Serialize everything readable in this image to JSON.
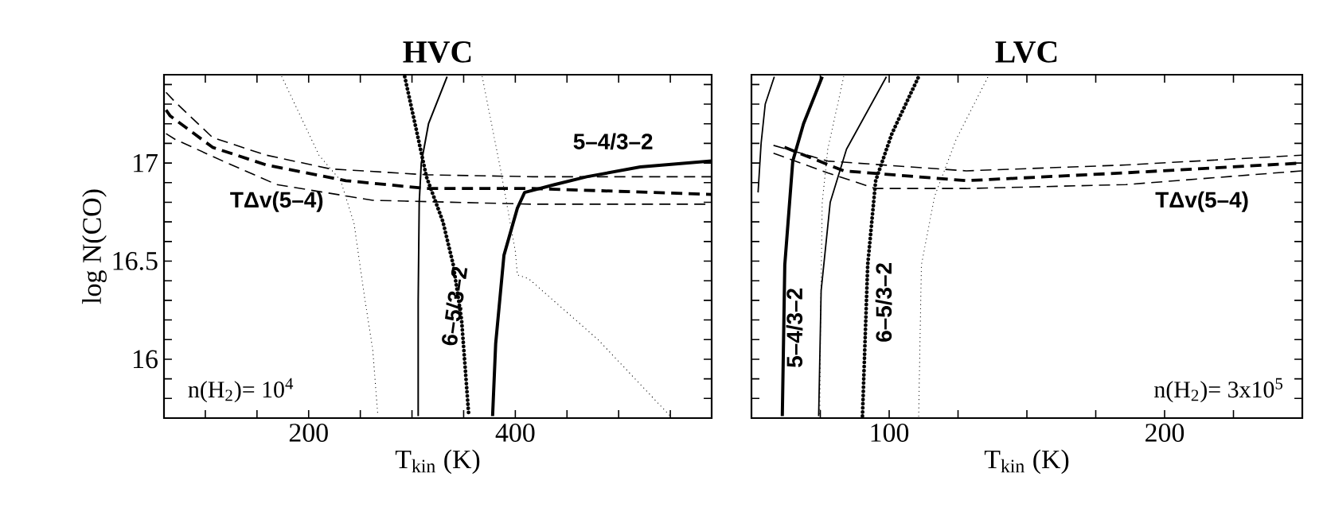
{
  "chart_data": [
    {
      "type": "line",
      "title": "HVC",
      "xlabel": "T$_{kin}$  (K)",
      "ylabel": "log N(CO)",
      "xlim": [
        60,
        590
      ],
      "ylim": [
        15.7,
        17.45
      ],
      "xticks": [
        {
          "value": 100,
          "label": null
        },
        {
          "value": 150,
          "label": null
        },
        200,
        {
          "value": 250,
          "label": null
        },
        {
          "value": 300,
          "label": null
        },
        {
          "value": 350,
          "label": null
        },
        400,
        {
          "value": 450,
          "label": null
        },
        {
          "value": 500,
          "label": null
        },
        {
          "value": 550,
          "label": null
        }
      ],
      "yticks": [
        {
          "value": 15.8,
          "label": null
        },
        {
          "value": 15.9,
          "label": null
        },
        16,
        {
          "value": 16.1,
          "label": null
        },
        {
          "value": 16.2,
          "label": null
        },
        {
          "value": 16.3,
          "label": null
        },
        {
          "value": 16.4,
          "label": null
        },
        16.5,
        {
          "value": 16.6,
          "label": null
        },
        {
          "value": 16.7,
          "label": null
        },
        {
          "value": 16.8,
          "label": null
        },
        {
          "value": 16.9,
          "label": null
        },
        17,
        {
          "value": 17.1,
          "label": null
        },
        {
          "value": 17.2,
          "label": null
        },
        {
          "value": 17.3,
          "label": null
        },
        {
          "value": 17.4,
          "label": null
        }
      ],
      "series": [
        {
          "color": "#000000",
          "line_style": "dotted",
          "x": [
            174,
            210,
            231,
            244,
            254,
            262,
            267
          ],
          "values": [
            17.44,
            17.04,
            16.91,
            16.69,
            16.32,
            16.05,
            15.71
          ]
        },
        {
          "color": "#000000",
          "line_style": "solid",
          "x": [
            306,
            306,
            307,
            309,
            316,
            334
          ],
          "values": [
            15.71,
            16.3,
            16.8,
            17.0,
            17.2,
            17.44
          ]
        },
        {
          "color": "#000000",
          "line_style": "dotted",
          "x": [
            293,
            305,
            314,
            330,
            340,
            348,
            355
          ],
          "values": [
            17.44,
            17.15,
            16.93,
            16.7,
            16.48,
            16.2,
            15.71
          ]
        },
        {
          "color": "#000000",
          "line_style": "dotted",
          "x": [
            368,
            386,
            400,
            402,
            413,
            480,
            550
          ],
          "values": [
            17.44,
            16.96,
            16.55,
            16.43,
            16.41,
            16.1,
            15.71
          ]
        },
        {
          "color": "#000000",
          "line_style": "solid",
          "x": [
            378,
            381,
            389,
            402,
            409,
            438,
            469,
            521,
            590
          ],
          "values": [
            15.71,
            16.08,
            16.53,
            16.77,
            16.85,
            16.89,
            16.93,
            16.98,
            17.01
          ]
        },
        {
          "color": "#000000",
          "line_style": "dashed",
          "x": [
            62,
            71,
            107,
            159,
            221,
            314,
            417,
            590
          ],
          "values": [
            17.36,
            17.31,
            17.13,
            17.04,
            16.97,
            16.94,
            16.93,
            16.93
          ]
        },
        {
          "color": "#000000",
          "line_style": "dashed",
          "x": [
            62,
            66,
            107,
            159,
            236,
            314,
            417,
            590
          ],
          "values": [
            17.27,
            17.24,
            17.08,
            16.99,
            16.91,
            16.87,
            16.87,
            16.84
          ]
        },
        {
          "color": "#000000",
          "line_style": "dashed",
          "x": [
            62,
            71,
            117,
            169,
            262,
            417,
            590
          ],
          "values": [
            17.15,
            17.12,
            17.01,
            16.89,
            16.81,
            16.79,
            16.79
          ]
        }
      ],
      "annotations": [
        "TΔv(5–4)",
        "5–4/3–2",
        "6–5/3–2",
        "n(H$_{2}$)= 10$^{4}$"
      ]
    },
    {
      "type": "line",
      "title": "LVC",
      "xlabel": "T$_{kin}$  (K)",
      "tick_labels": "x",
      "xlim": [
        50,
        250
      ],
      "ylim": [
        15.7,
        17.45
      ],
      "xticks": [
        {
          "value": 75,
          "label": null
        },
        100,
        {
          "value": 125,
          "label": null
        },
        {
          "value": 150,
          "label": null
        },
        {
          "value": 175,
          "label": null
        },
        200,
        {
          "value": 225,
          "label": null
        }
      ],
      "yticks": [
        {
          "value": 15.8,
          "label": null
        },
        {
          "value": 15.9,
          "label": null
        },
        {
          "value": 16,
          "label": null
        },
        {
          "value": 16.1,
          "label": null
        },
        {
          "value": 16.2,
          "label": null
        },
        {
          "value": 16.3,
          "label": null
        },
        {
          "value": 16.4,
          "label": null
        },
        {
          "value": 16.5,
          "label": null
        },
        {
          "value": 16.6,
          "label": null
        },
        {
          "value": 16.7,
          "label": null
        },
        {
          "value": 16.8,
          "label": null
        },
        {
          "value": 16.9,
          "label": null
        },
        {
          "value": 17,
          "label": null
        },
        {
          "value": 17.1,
          "label": null
        },
        {
          "value": 17.2,
          "label": null
        },
        {
          "value": 17.3,
          "label": null
        },
        {
          "value": 17.4,
          "label": null
        }
      ],
      "series": [
        {
          "color": "#000000",
          "line_style": "solid",
          "x": [
            52.4,
            53.5,
            55,
            58.3
          ],
          "values": [
            16.85,
            17.1,
            17.3,
            17.44
          ]
        },
        {
          "color": "#000000",
          "line_style": "solid",
          "x": [
            61.2,
            62.1,
            65,
            68.9,
            75.7
          ],
          "values": [
            15.71,
            16.48,
            17.01,
            17.2,
            17.44
          ]
        },
        {
          "color": "#000000",
          "line_style": "solid",
          "x": [
            74.4,
            75.3,
            78.6,
            84.5,
            99
          ],
          "values": [
            15.71,
            16.35,
            16.8,
            17.07,
            17.44
          ]
        },
        {
          "color": "#000000",
          "line_style": "dotted",
          "x": [
            83.5,
            77.7,
            75.7,
            75.1,
            74.8
          ],
          "values": [
            17.44,
            17.07,
            16.8,
            16.21,
            15.71
          ]
        },
        {
          "color": "#000000",
          "line_style": "dotted",
          "x": [
            90.3,
            92.2,
            95.1,
            101,
            110.7
          ],
          "values": [
            15.71,
            16.48,
            16.91,
            17.15,
            17.44
          ]
        },
        {
          "color": "#000000",
          "line_style": "dotted",
          "x": [
            110.7,
            111.7,
            116.5,
            124.3,
            135.9
          ],
          "values": [
            15.71,
            16.48,
            16.83,
            17.12,
            17.44
          ]
        },
        {
          "color": "#000000",
          "line_style": "dashed",
          "x": [
            58,
            77.7,
            128,
            186,
            250
          ],
          "values": [
            17.09,
            17.01,
            16.96,
            16.99,
            17.04
          ]
        },
        {
          "color": "#000000",
          "line_style": "dashed",
          "x": [
            62,
            83.5,
            128,
            186,
            250
          ],
          "values": [
            17.08,
            16.96,
            16.91,
            16.95,
            17.0
          ]
        },
        {
          "color": "#000000",
          "line_style": "dashed",
          "x": [
            58,
            77.7,
            95,
            128,
            186,
            250
          ],
          "values": [
            17.05,
            16.95,
            16.87,
            16.87,
            16.89,
            16.96
          ]
        }
      ],
      "annotations": [
        "5–4/3–2",
        "6–5/3–2",
        "TΔv(5–4)",
        "n(H$_{2}$)= 3x10$^{5}$"
      ]
    }
  ]
}
